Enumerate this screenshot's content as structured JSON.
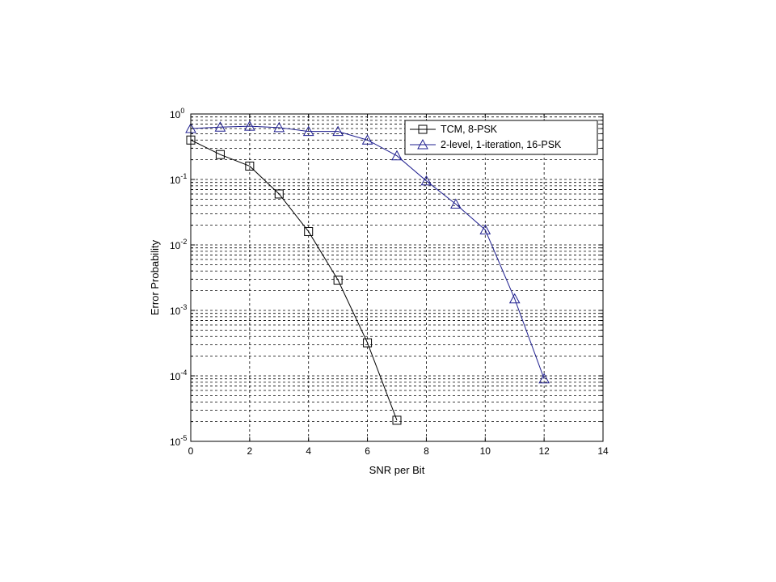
{
  "chart_data": {
    "type": "line",
    "title": "",
    "xlabel": "SNR per Bit",
    "ylabel": "Error Probability",
    "xlim": [
      0,
      14
    ],
    "ylim": [
      1e-05,
      1
    ],
    "yscale": "log",
    "grid": true,
    "legend_position": "top-right",
    "x_ticks": [
      0,
      2,
      4,
      6,
      8,
      10,
      12,
      14
    ],
    "x_tick_labels": [
      "0",
      "2",
      "4",
      "6",
      "8",
      "10",
      "12",
      "14"
    ],
    "y_tick_labels": [
      {
        "base": "10",
        "exp": "-5"
      },
      {
        "base": "10",
        "exp": "-4"
      },
      {
        "base": "10",
        "exp": "-3"
      },
      {
        "base": "10",
        "exp": "-2"
      },
      {
        "base": "10",
        "exp": "-1"
      },
      {
        "base": "10",
        "exp": "0"
      }
    ],
    "series": [
      {
        "name": "TCM, 8-PSK",
        "color": "#000000",
        "marker": "square",
        "x": [
          0,
          1,
          2,
          3,
          4,
          5,
          6,
          7
        ],
        "y": [
          0.4,
          0.24,
          0.16,
          0.06,
          0.016,
          0.0029,
          0.00032,
          2.1e-05
        ]
      },
      {
        "name": "2-level, 1-iteration, 16-PSK",
        "color": "#1f1f8f",
        "marker": "triangle",
        "x": [
          0,
          1,
          2,
          3,
          4,
          5,
          6,
          7,
          8,
          9,
          10,
          11,
          12
        ],
        "y": [
          0.6,
          0.63,
          0.65,
          0.62,
          0.54,
          0.54,
          0.4,
          0.23,
          0.095,
          0.042,
          0.017,
          0.0015,
          9e-05
        ]
      }
    ]
  }
}
